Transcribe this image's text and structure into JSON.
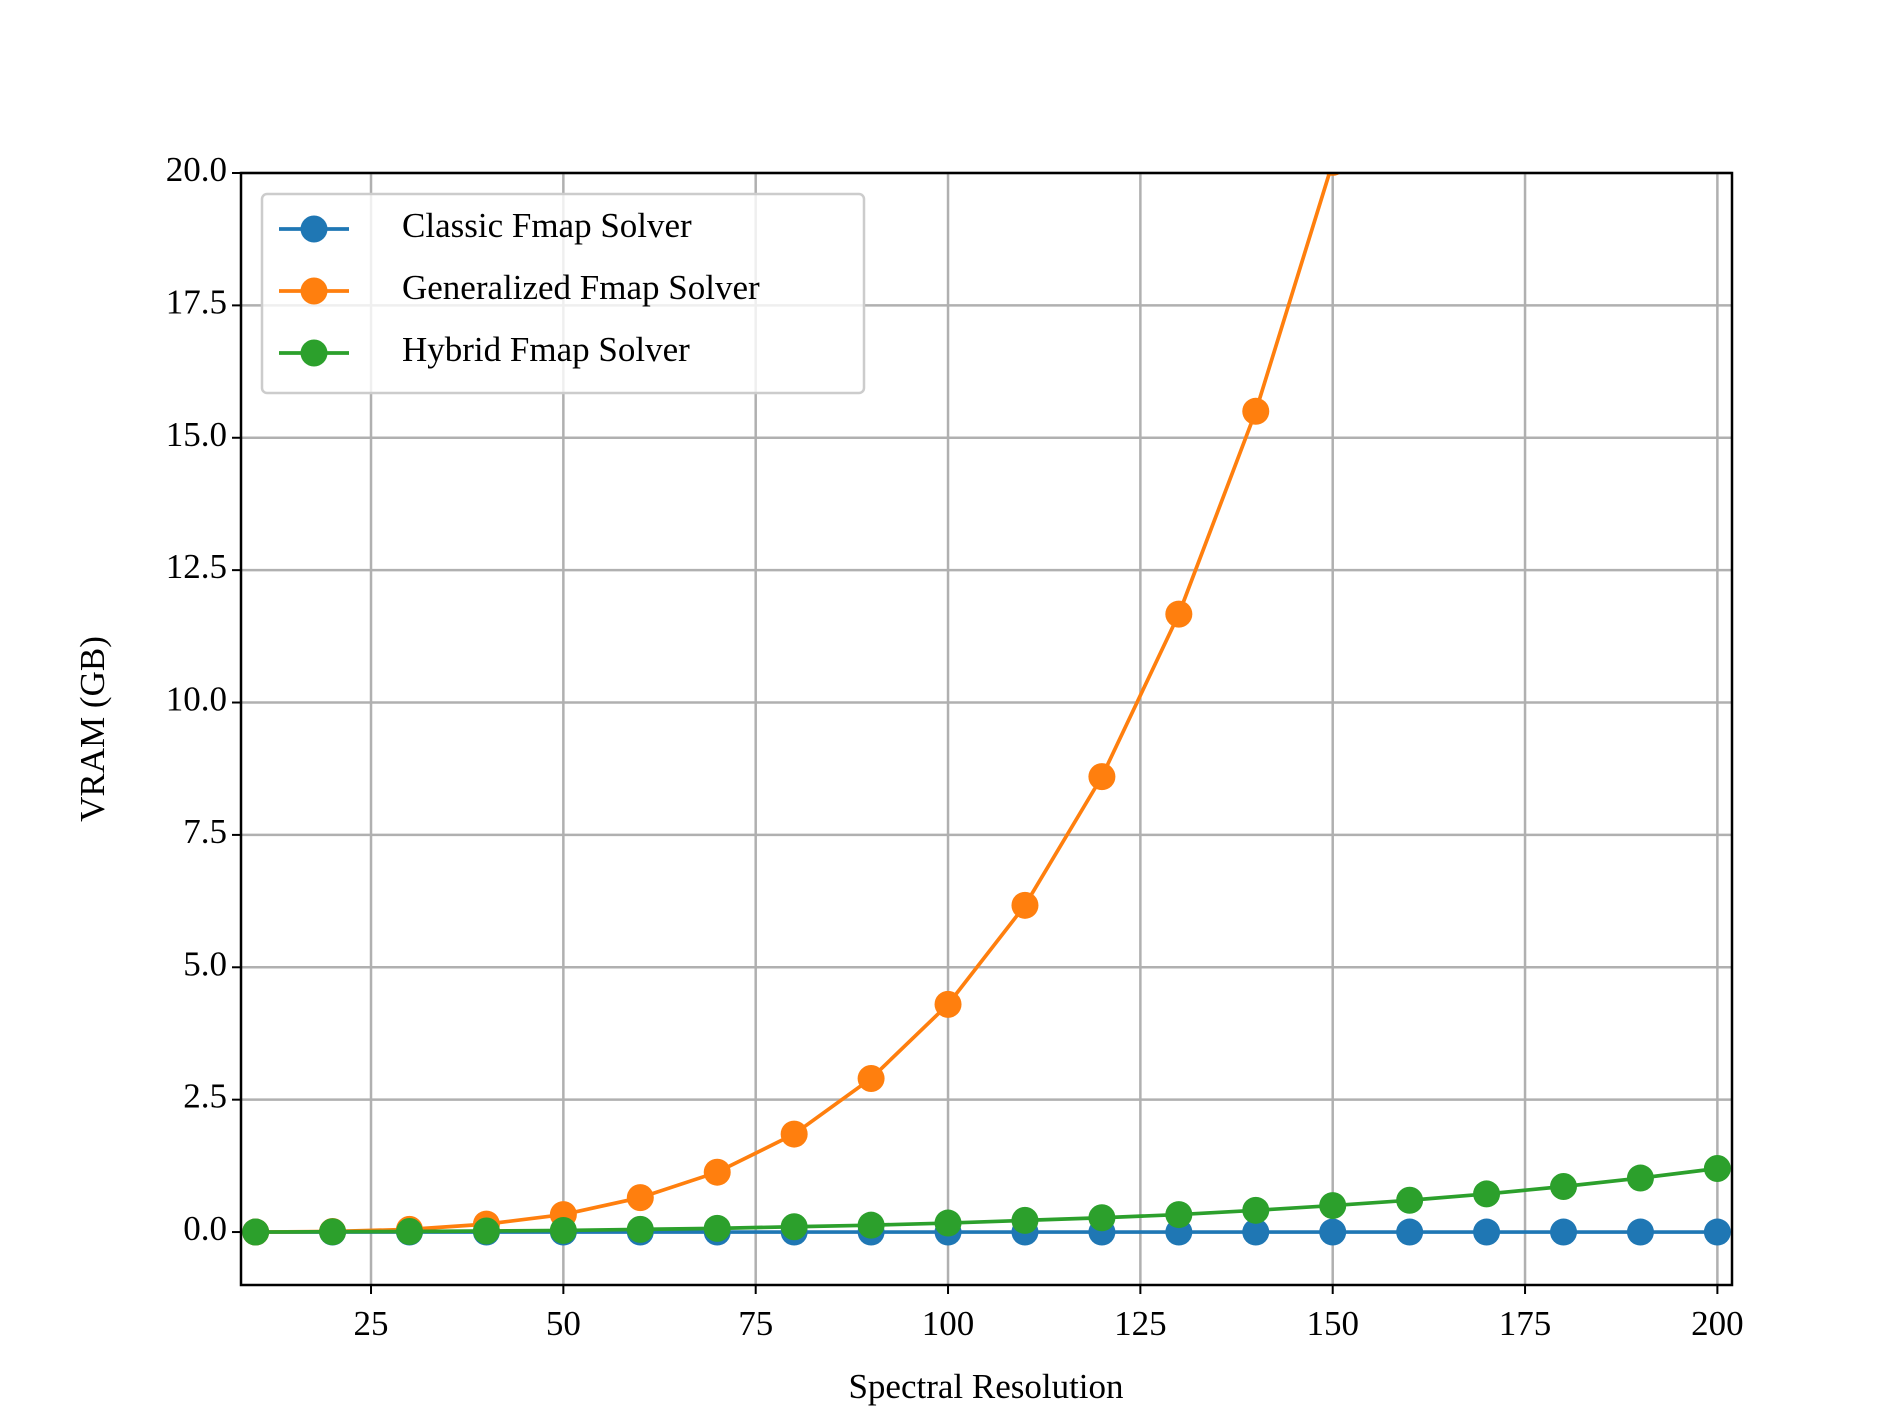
{
  "chart_data": {
    "type": "line",
    "x": [
      10,
      20,
      30,
      40,
      50,
      60,
      70,
      80,
      90,
      100,
      110,
      120,
      130,
      140,
      150,
      160,
      170,
      180,
      190,
      200
    ],
    "series": [
      {
        "name": "Classic Fmap Solver",
        "color": "#1f77b4",
        "values": [
          0,
          0,
          0,
          0,
          0,
          0,
          0,
          0,
          0,
          0,
          0,
          0,
          0,
          0,
          0,
          0,
          0,
          0,
          0,
          0
        ]
      },
      {
        "name": "Generalized Fmap Solver",
        "color": "#ff7f0e",
        "values": [
          0,
          0.01,
          0.05,
          0.15,
          0.33,
          0.65,
          1.13,
          1.85,
          2.9,
          4.3,
          6.17,
          8.6,
          11.67,
          15.5,
          20.2,
          null,
          null,
          null,
          null,
          null
        ]
      },
      {
        "name": "Hybrid Fmap Solver",
        "color": "#2ca02c",
        "values": [
          0,
          0.005,
          0.01,
          0.02,
          0.03,
          0.05,
          0.07,
          0.1,
          0.13,
          0.17,
          0.22,
          0.27,
          0.33,
          0.41,
          0.5,
          0.6,
          0.72,
          0.86,
          1.02,
          1.2
        ]
      }
    ],
    "x_label": "Spectral Resolution",
    "y_label": "VRAM (GB)",
    "xlim": [
      8.1,
      201.9
    ],
    "xticks": [
      25,
      50,
      75,
      100,
      125,
      150,
      175,
      200
    ],
    "ylim": [
      -1,
      20
    ],
    "yticks": [
      {
        "value": 0,
        "label": "0.0"
      },
      {
        "value": 2.5,
        "label": "2.5"
      },
      {
        "value": 5,
        "label": "5.0"
      },
      {
        "value": 7.5,
        "label": "7.5"
      },
      {
        "value": 10,
        "label": "10.0"
      },
      {
        "value": 12.5,
        "label": "12.5"
      },
      {
        "value": 15,
        "label": "15.0"
      },
      {
        "value": 17.5,
        "label": "17.5"
      },
      {
        "value": 20,
        "label": "20.0"
      }
    ],
    "grid": true,
    "legend": "upper left"
  }
}
